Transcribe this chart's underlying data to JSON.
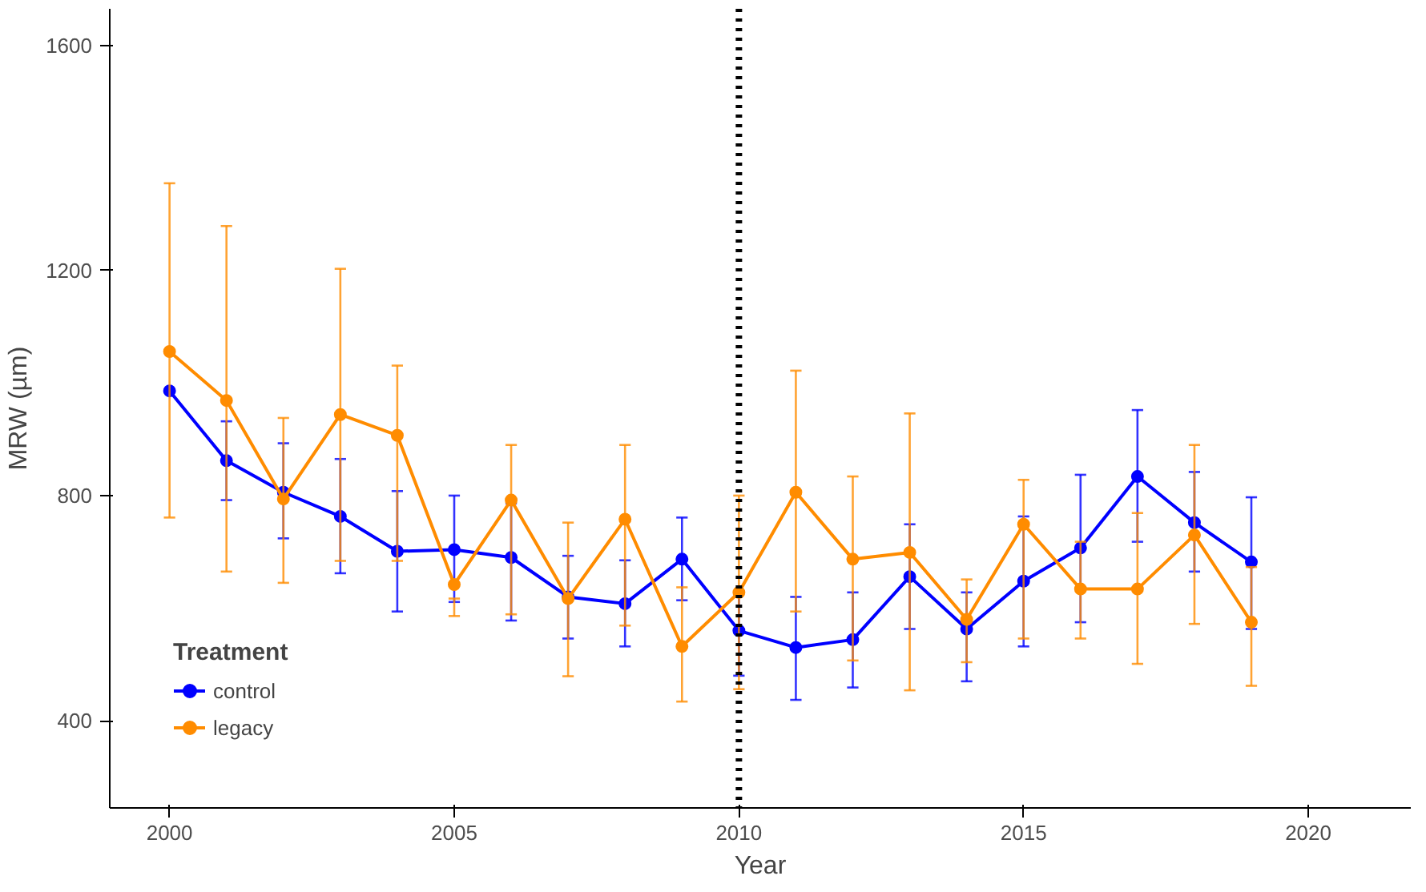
{
  "chart_data": {
    "type": "line",
    "xlabel": "Year",
    "ylabel": "MRW (µm)",
    "legend_title": "Treatment",
    "legend": "bottom left",
    "grid": false,
    "marker": "circle",
    "line_style": "solid",
    "x": [
      2000,
      2001,
      2002,
      2003,
      2004,
      2005,
      2006,
      2007,
      2008,
      2009,
      2010,
      2011,
      2012,
      2013,
      2014,
      2015,
      2016,
      2017,
      2018,
      2019
    ],
    "xlim": [
      1998.95,
      2021.8
    ],
    "xticks": [
      2000,
      2005,
      2010,
      2015,
      2020
    ],
    "ylim": [
      245,
      1665
    ],
    "yticks": [
      400,
      800,
      1200,
      1600
    ],
    "series": [
      {
        "name": "control",
        "color": "#0000ff",
        "values": [
          986,
          862,
          806,
          763,
          701,
          704,
          690,
          620,
          608,
          687,
          560,
          530,
          544,
          656,
          563,
          648,
          707,
          834,
          752,
          682
        ],
        "errors": [
          null,
          [
            792,
            932
          ],
          [
            724,
            893
          ],
          [
            662,
            865
          ],
          [
            594,
            808
          ],
          [
            611,
            800
          ],
          [
            578,
            786
          ],
          [
            546,
            693
          ],
          [
            532,
            685
          ],
          [
            614,
            761
          ],
          [
            480,
            630
          ],
          [
            437,
            620
          ],
          [
            459,
            628
          ],
          [
            563,
            749
          ],
          [
            470,
            628
          ],
          [
            532,
            763
          ],
          [
            575,
            837
          ],
          [
            718,
            952
          ],
          [
            665,
            842
          ],
          [
            563,
            797
          ]
        ]
      },
      {
        "name": "legacy",
        "color": "#ff8c00",
        "values": [
          1056,
          969,
          794,
          944,
          907,
          642,
          792,
          617,
          758,
          532,
          628,
          806,
          687,
          699,
          580,
          749,
          634,
          634,
          730,
          575
        ],
        "errors": [
          [
            761,
            1355
          ],
          [
            665,
            1279
          ],
          [
            645,
            938
          ],
          [
            684,
            1203
          ],
          [
            684,
            1031
          ],
          [
            586,
            617
          ],
          [
            589,
            890
          ],
          [
            479,
            752
          ],
          [
            569,
            890
          ],
          [
            434,
            637
          ],
          [
            456,
            800
          ],
          [
            594,
            1022
          ],
          [
            507,
            834
          ],
          [
            454,
            946
          ],
          [
            504,
            651
          ],
          [
            546,
            828
          ],
          [
            546,
            718
          ],
          [
            501,
            769
          ],
          [
            572,
            890
          ],
          [
            462,
            673
          ]
        ]
      }
    ],
    "ref_lines": [
      {
        "axis": "x",
        "value": 2010,
        "color": "#000000",
        "line_style": "dotted"
      }
    ]
  }
}
